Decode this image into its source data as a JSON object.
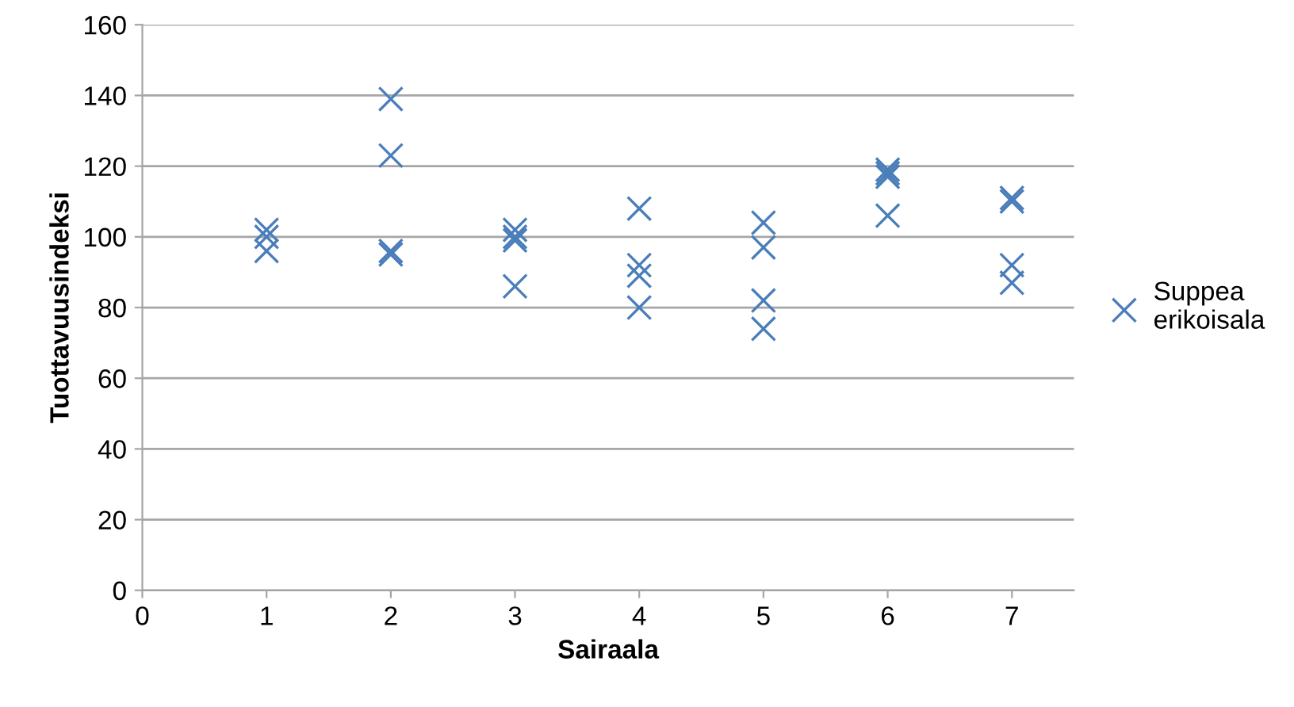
{
  "chart_data": {
    "type": "scatter",
    "xlabel": "Sairaala",
    "ylabel": "Tuottavuusindeksi",
    "xlim": [
      0,
      7.5
    ],
    "xticks": [
      0,
      1,
      2,
      3,
      4,
      5,
      6,
      7
    ],
    "ylim": [
      0,
      160
    ],
    "yticks": [
      0,
      20,
      40,
      60,
      80,
      100,
      120,
      140,
      160
    ],
    "grid": "y",
    "legend": "right",
    "marker": "cross",
    "series": [
      {
        "name": "Suppea erikoisala",
        "color": "#4a7ebb",
        "x": [
          1,
          1,
          1,
          2,
          2,
          2,
          2,
          3,
          3,
          3,
          3,
          4,
          4,
          4,
          4,
          5,
          5,
          5,
          5,
          6,
          6,
          6,
          6,
          7,
          7,
          7,
          7
        ],
        "values": [
          102,
          100,
          96,
          139,
          123,
          96,
          95,
          102,
          100,
          99,
          86,
          108,
          92,
          89,
          80,
          104,
          97,
          82,
          74,
          119,
          118,
          117,
          106,
          111,
          110,
          92,
          87
        ]
      }
    ]
  }
}
